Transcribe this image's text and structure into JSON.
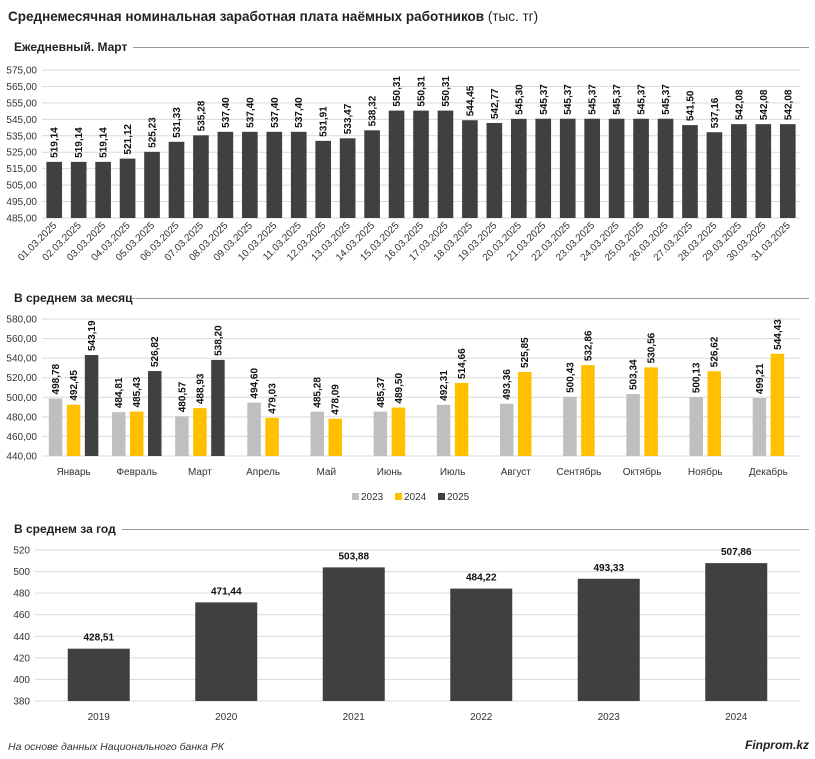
{
  "header": {
    "title": "Среднемесячная номинальная заработная плата наёмных работников",
    "unit": " (тыс. тг)"
  },
  "footer": {
    "source": "На основе данных Национального банка РК",
    "brand": "Finprom.kz"
  },
  "colors": {
    "dark": "#404040",
    "y2023": "#bfbfbf",
    "y2024": "#ffc000",
    "y2025": "#404040",
    "grid": "#d9d9d9"
  },
  "chart_data": [
    {
      "type": "bar",
      "title": "Ежедневный. Март",
      "categories": [
        "01.03.2025",
        "02.03.2025",
        "03.03.2025",
        "04.03.2025",
        "05.03.2025",
        "06.03.2025",
        "07.03.2025",
        "08.03.2025",
        "09.03.2025",
        "10.03.2025",
        "11.03.2025",
        "12.03.2025",
        "13.03.2025",
        "14.03.2025",
        "15.03.2025",
        "16.03.2025",
        "17.03.2025",
        "18.03.2025",
        "19.03.2025",
        "20.03.2025",
        "21.03.2025",
        "22.03.2025",
        "23.03.2025",
        "24.03.2025",
        "25.03.2025",
        "26.03.2025",
        "27.03.2025",
        "28.03.2025",
        "29.03.2025",
        "30.03.2025",
        "31.03.2025"
      ],
      "values": [
        519.14,
        519.14,
        519.14,
        521.12,
        525.23,
        531.33,
        535.28,
        537.4,
        537.4,
        537.4,
        537.4,
        531.91,
        533.47,
        538.32,
        550.31,
        550.31,
        550.31,
        544.45,
        542.77,
        545.3,
        545.37,
        545.37,
        545.37,
        545.37,
        545.37,
        545.37,
        541.5,
        537.16,
        542.08,
        542.08,
        542.08
      ],
      "labels": [
        "519,14",
        "519,14",
        "519,14",
        "521,12",
        "525,23",
        "531,33",
        "535,28",
        "537,40",
        "537,40",
        "537,40",
        "537,40",
        "531,91",
        "533,47",
        "538,32",
        "550,31",
        "550,31",
        "550,31",
        "544,45",
        "542,77",
        "545,30",
        "545,37",
        "545,37",
        "545,37",
        "545,37",
        "545,37",
        "545,37",
        "541,50",
        "537,16",
        "542,08",
        "542,08",
        "542,08"
      ],
      "ylim": [
        485,
        575
      ],
      "yticks": [
        485,
        495,
        505,
        515,
        525,
        535,
        545,
        555,
        565,
        575
      ],
      "ytick_labels": [
        "485,00",
        "495,00",
        "505,00",
        "515,00",
        "525,00",
        "535,00",
        "545,00",
        "555,00",
        "565,00",
        "575,00"
      ],
      "grid": true
    },
    {
      "type": "bar",
      "title": "В среднем за месяц",
      "categories": [
        "Январь",
        "Февраль",
        "Март",
        "Апрель",
        "Май",
        "Июнь",
        "Июль",
        "Август",
        "Сентябрь",
        "Октябрь",
        "Ноябрь",
        "Декабрь"
      ],
      "series": [
        {
          "name": "2023",
          "values": [
            498.78,
            484.81,
            480.57,
            494.6,
            485.28,
            485.37,
            492.31,
            493.36,
            500.43,
            503.34,
            500.13,
            499.21
          ],
          "labels": [
            "498,78",
            "484,81",
            "480,57",
            "494,60",
            "485,28",
            "485,37",
            "492,31",
            "493,36",
            "500,43",
            "503,34",
            "500,13",
            "499,21"
          ]
        },
        {
          "name": "2024",
          "values": [
            492.45,
            485.43,
            488.93,
            479.03,
            478.09,
            489.5,
            514.66,
            525.85,
            532.86,
            530.56,
            526.62,
            544.43
          ],
          "labels": [
            "492,45",
            "485,43",
            "488,93",
            "479,03",
            "478,09",
            "489,50",
            "514,66",
            "525,85",
            "532,86",
            "530,56",
            "526,62",
            "544,43"
          ]
        },
        {
          "name": "2025",
          "values": [
            543.19,
            526.82,
            538.2,
            null,
            null,
            null,
            null,
            null,
            null,
            null,
            null,
            null
          ],
          "labels": [
            "543,19",
            "526,82",
            "538,20",
            "",
            "",
            "",
            "",
            "",
            "",
            "",
            "",
            ""
          ]
        }
      ],
      "ylim": [
        440,
        580
      ],
      "yticks": [
        440,
        460,
        480,
        500,
        520,
        540,
        560,
        580
      ],
      "ytick_labels": [
        "440,00",
        "460,00",
        "480,00",
        "500,00",
        "520,00",
        "540,00",
        "560,00",
        "580,00"
      ],
      "legend_position": "bottom",
      "grid": true
    },
    {
      "type": "bar",
      "title": "В среднем за год",
      "categories": [
        "2019",
        "2020",
        "2021",
        "2022",
        "2023",
        "2024"
      ],
      "values": [
        428.51,
        471.44,
        503.88,
        484.22,
        493.33,
        507.86
      ],
      "labels": [
        "428,51",
        "471,44",
        "503,88",
        "484,22",
        "493,33",
        "507,86"
      ],
      "ylim": [
        380,
        520
      ],
      "yticks": [
        380,
        400,
        420,
        440,
        460,
        480,
        500,
        520
      ],
      "ytick_labels": [
        "380",
        "400",
        "420",
        "440",
        "460",
        "480",
        "500",
        "520"
      ],
      "grid": true
    }
  ]
}
